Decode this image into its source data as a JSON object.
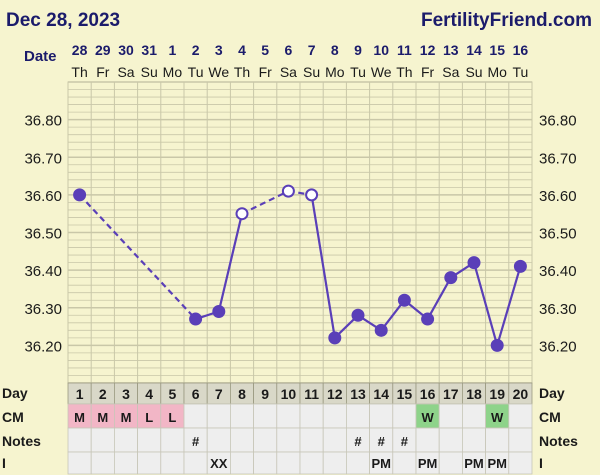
{
  "header": {
    "date": "Dec 28, 2023",
    "brand": "FertilityFriend.com"
  },
  "date_row_label": "Date",
  "day_row_label": "Day",
  "colors": {
    "line": "#5a3fb8",
    "grid": "#c9c7a8",
    "plot_bg": "#f6f4cf",
    "cell_bg": "#eeeeee",
    "menses": "#f2b6c6",
    "watery": "#8ed38a",
    "text_dark": "#1b1b6b"
  },
  "chart_data": {
    "type": "line",
    "dates": [
      "28",
      "29",
      "30",
      "31",
      "1",
      "2",
      "3",
      "4",
      "5",
      "6",
      "7",
      "8",
      "9",
      "10",
      "11",
      "12",
      "13",
      "14",
      "15",
      "16"
    ],
    "weekdays": [
      "Th",
      "Fr",
      "Sa",
      "Su",
      "Mo",
      "Tu",
      "We",
      "Th",
      "Fr",
      "Sa",
      "Su",
      "Mo",
      "Tu",
      "We",
      "Th",
      "Fr",
      "Sa",
      "Su",
      "Mo",
      "Tu"
    ],
    "days": [
      "1",
      "2",
      "3",
      "4",
      "5",
      "6",
      "7",
      "8",
      "9",
      "10",
      "11",
      "12",
      "13",
      "14",
      "15",
      "16",
      "17",
      "18",
      "19",
      "20"
    ],
    "ylim": [
      36.1,
      36.9
    ],
    "yticks": [
      "36.20",
      "36.30",
      "36.40",
      "36.50",
      "36.60",
      "36.70",
      "36.80"
    ],
    "series": [
      {
        "values": [
          36.6,
          null,
          null,
          null,
          null,
          36.27,
          36.29,
          36.55,
          null,
          36.61,
          36.6,
          36.22,
          36.28,
          36.24,
          36.32,
          36.27,
          36.38,
          36.42,
          36.2,
          36.41
        ],
        "open_points": [
          7,
          9,
          10
        ],
        "dashed_segments": [
          [
            0,
            5
          ],
          [
            7,
            9
          ],
          [
            9,
            10
          ]
        ]
      }
    ],
    "rows": [
      {
        "label": "CM",
        "cells": [
          "M",
          "M",
          "M",
          "L",
          "L",
          "",
          "",
          "",
          "",
          "",
          "",
          "",
          "",
          "",
          "",
          "W",
          "",
          "",
          "W",
          ""
        ],
        "fills": [
          "menses",
          "menses",
          "menses",
          "menses",
          "menses",
          "",
          "",
          "",
          "",
          "",
          "",
          "",
          "",
          "",
          "",
          "watery",
          "",
          "",
          "watery",
          ""
        ]
      },
      {
        "label": "Notes",
        "cells": [
          "",
          "",
          "",
          "",
          "",
          "#",
          "",
          "",
          "",
          "",
          "",
          "",
          "#",
          "#",
          "#",
          "",
          "",
          "",
          "",
          ""
        ],
        "fills": []
      },
      {
        "label": "I",
        "cells": [
          "",
          "",
          "",
          "",
          "",
          "",
          "XX",
          "",
          "",
          "",
          "",
          "",
          "",
          "PM",
          "",
          "PM",
          "",
          "PM",
          "PM",
          ""
        ],
        "fills": []
      }
    ]
  }
}
